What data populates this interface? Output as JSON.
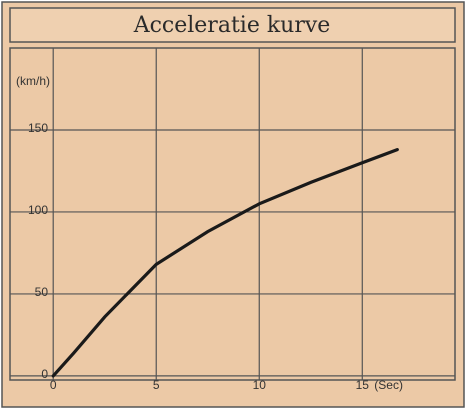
{
  "chart_data": {
    "type": "line",
    "title": "Acceleratie kurve",
    "y_label": "(km/h)",
    "x_unit_label": "(Sec)",
    "x": [
      0,
      1,
      2.5,
      5,
      7.5,
      10,
      12.5,
      15,
      16.7
    ],
    "values": [
      0,
      14,
      36,
      68,
      88,
      105,
      118,
      130,
      138
    ],
    "color": "#1a1a1a",
    "xlim": [
      -2,
      19.5
    ],
    "xticks": [
      0,
      5,
      10,
      15
    ],
    "ylim": [
      -2.5,
      200
    ],
    "yticks": [
      0,
      50,
      100,
      150
    ],
    "grid": true
  }
}
